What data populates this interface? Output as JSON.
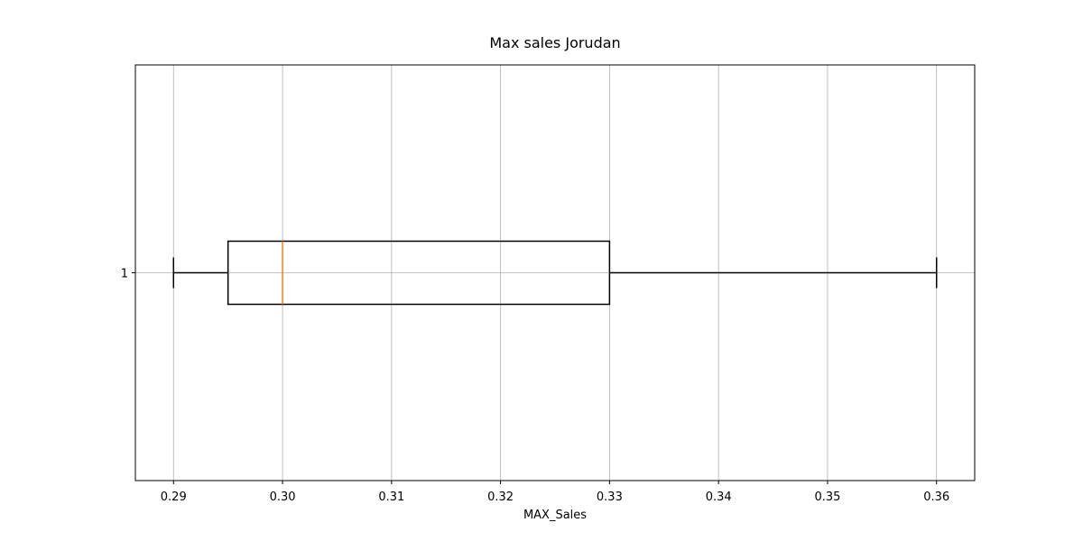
{
  "chart_data": {
    "type": "boxplot",
    "orientation": "horizontal",
    "title": "Max sales Jorudan",
    "xlabel": "MAX_Sales",
    "ylabel": "",
    "xlim": [
      0.2865,
      0.3635
    ],
    "x_ticks": [
      0.29,
      0.3,
      0.31,
      0.32,
      0.33,
      0.34,
      0.35,
      0.36
    ],
    "x_tick_labels": [
      "0.29",
      "0.30",
      "0.31",
      "0.32",
      "0.33",
      "0.34",
      "0.35",
      "0.36"
    ],
    "y_ticks": [
      1
    ],
    "y_tick_labels": [
      "1"
    ],
    "grid": true,
    "boxes": [
      {
        "position": 1,
        "whisker_low": 0.29,
        "q1": 0.295,
        "median": 0.3,
        "q3": 0.33,
        "whisker_high": 0.36
      }
    ],
    "colors": {
      "box": "#000000",
      "median": "#ff7f0e",
      "grid": "#b0b0b0"
    }
  }
}
